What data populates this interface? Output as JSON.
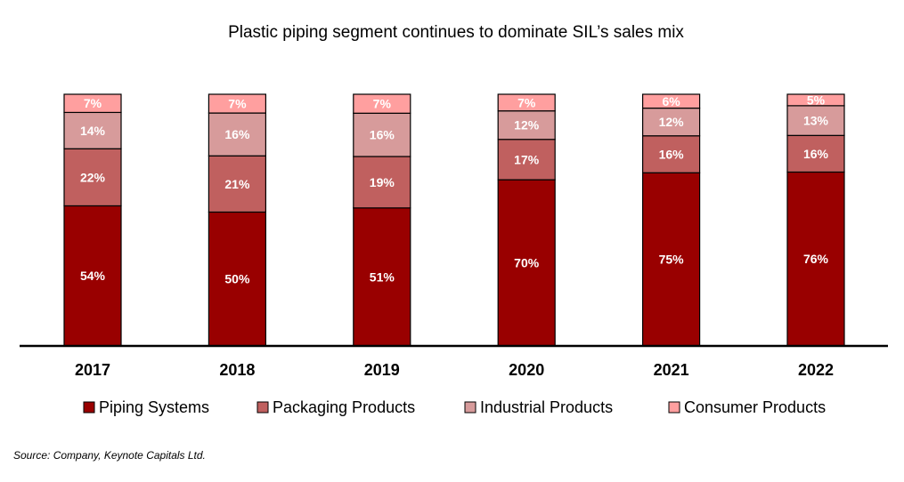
{
  "chart_data": {
    "type": "bar",
    "stacked": true,
    "title": "Plastic piping segment continues to dominate SIL’s sales mix",
    "categories": [
      "2017",
      "2018",
      "2019",
      "2020",
      "2021",
      "2022"
    ],
    "series": [
      {
        "name": "Piping Systems",
        "color": "#990000",
        "label_color": "#ffffff",
        "values": [
          54,
          50,
          51,
          70,
          75,
          76
        ],
        "labels": [
          "54%",
          "50%",
          "51%",
          "70%",
          "75%",
          "76%"
        ]
      },
      {
        "name": "Packaging Products",
        "color": "#c0605f",
        "label_color": "#ffffff",
        "values": [
          22,
          21,
          19,
          17,
          16,
          16
        ],
        "labels": [
          "22%",
          "21%",
          "19%",
          "17%",
          "16%",
          "16%"
        ]
      },
      {
        "name": "Industrial Products",
        "color": "#d79b9b",
        "label_color": "#ffffff",
        "values": [
          14,
          16,
          16,
          12,
          12,
          13
        ],
        "labels": [
          "14%",
          "16%",
          "16%",
          "12%",
          "12%",
          "13%"
        ]
      },
      {
        "name": "Consumer Products",
        "color": "#ff9f9f",
        "label_color": "#ffffff",
        "values": [
          7,
          7,
          7,
          7,
          6,
          5
        ],
        "labels": [
          "7%",
          "7%",
          "7%",
          "7%",
          "6%",
          "5%"
        ]
      }
    ],
    "xlabel": "",
    "ylabel": "",
    "legend_position": "bottom",
    "grid": false
  },
  "source": "Source: Company, Keynote Capitals Ltd."
}
